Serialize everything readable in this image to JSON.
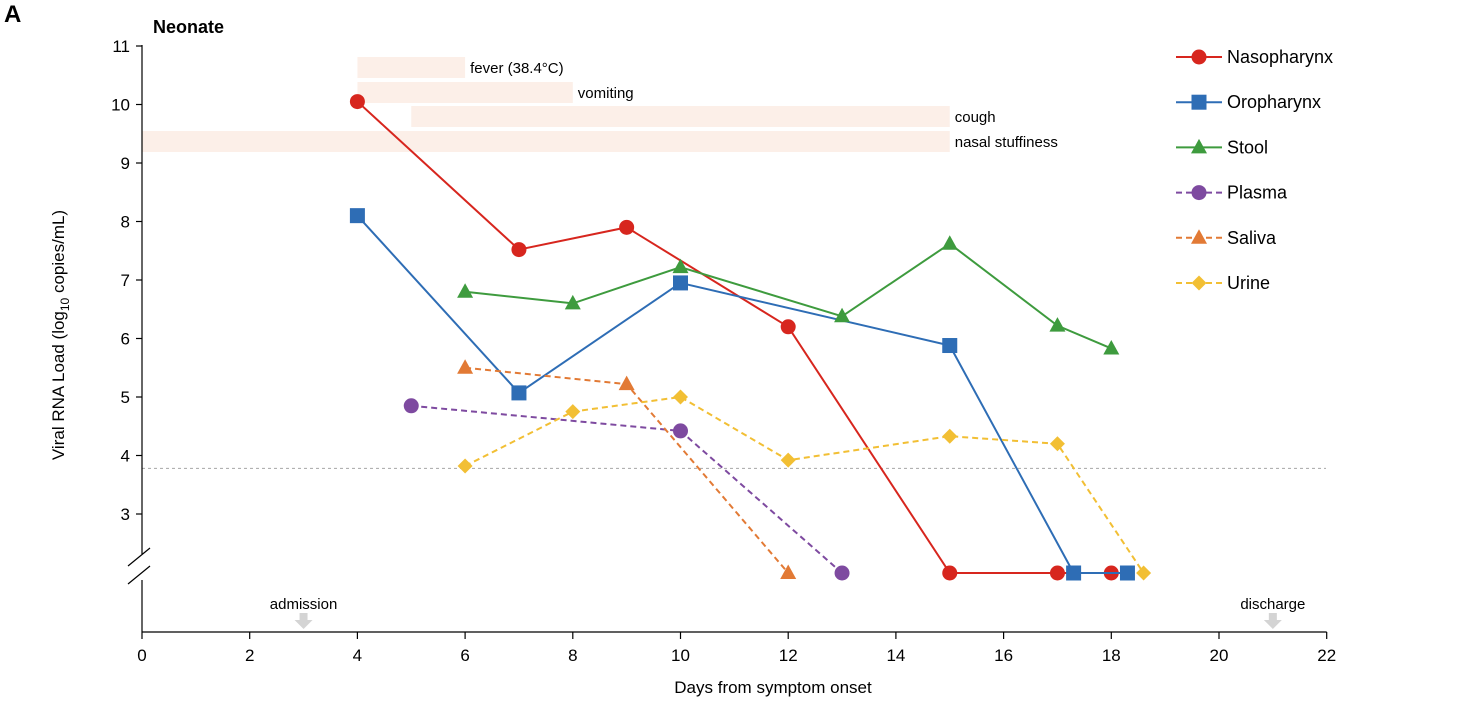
{
  "chart_data": {
    "type": "line",
    "panel_label": "A",
    "title": "Neonate",
    "xlabel": "Days from symptom onset",
    "ylabel": "Viral RNA Load (log10 copies/mL)",
    "ylabel_parts": {
      "pre": "Viral RNA Load (log",
      "sub": "10",
      "post": " copies/mL)"
    },
    "xlim": [
      0,
      22
    ],
    "ylim": [
      3,
      11
    ],
    "x_ticks": [
      "0",
      "2",
      "4",
      "6",
      "8",
      "10",
      "12",
      "14",
      "16",
      "18",
      "20",
      "22"
    ],
    "y_ticks": [
      "3",
      "4",
      "5",
      "6",
      "7",
      "8",
      "9",
      "10",
      "11"
    ],
    "axis_break": true,
    "detection_limit": 3.78,
    "undetectable_level": "below axis break",
    "legend_position": "top-right",
    "series": [
      {
        "name": "Nasopharynx",
        "color": "#d7261e",
        "marker": "circle",
        "dashed": false,
        "points": [
          [
            4,
            10.05
          ],
          [
            7,
            7.52
          ],
          [
            9,
            7.9
          ],
          [
            12,
            6.2
          ],
          [
            15,
            "ND"
          ],
          [
            17,
            "ND"
          ],
          [
            18,
            "ND"
          ]
        ]
      },
      {
        "name": "Oropharynx",
        "color": "#2e6db5",
        "marker": "square",
        "dashed": false,
        "points": [
          [
            4,
            8.1
          ],
          [
            7,
            5.07
          ],
          [
            10,
            6.95
          ],
          [
            15,
            5.88
          ],
          [
            17.3,
            "ND"
          ],
          [
            18.3,
            "ND"
          ]
        ]
      },
      {
        "name": "Stool",
        "color": "#3e9b3e",
        "marker": "triangle",
        "dashed": false,
        "points": [
          [
            6,
            6.8
          ],
          [
            8,
            6.6
          ],
          [
            10,
            7.22
          ],
          [
            13,
            6.38
          ],
          [
            15,
            7.62
          ],
          [
            17,
            6.22
          ],
          [
            18,
            5.83
          ]
        ]
      },
      {
        "name": "Plasma",
        "color": "#7e4aa0",
        "marker": "circle",
        "dashed": true,
        "points": [
          [
            5,
            4.85
          ],
          [
            10,
            4.42
          ],
          [
            13,
            "ND"
          ]
        ]
      },
      {
        "name": "Saliva",
        "color": "#e27a35",
        "marker": "triangle",
        "dashed": true,
        "points": [
          [
            6,
            5.5
          ],
          [
            9,
            5.22
          ],
          [
            12,
            "ND"
          ]
        ]
      },
      {
        "name": "Urine",
        "color": "#f2bf34",
        "marker": "diamond",
        "dashed": true,
        "points": [
          [
            6,
            3.82
          ],
          [
            8,
            4.75
          ],
          [
            10,
            5.0
          ],
          [
            12,
            3.92
          ],
          [
            15,
            4.33
          ],
          [
            17,
            4.2
          ],
          [
            18.6,
            "ND"
          ]
        ]
      }
    ],
    "symptoms": [
      {
        "label": "fever (38.4°C)",
        "start": 4,
        "end": 6
      },
      {
        "label": "vomiting",
        "start": 4,
        "end": 8
      },
      {
        "label": "cough",
        "start": 5,
        "end": 15
      },
      {
        "label": "nasal stuffiness",
        "start": 0,
        "end": 15
      }
    ],
    "events": [
      {
        "label": "admission",
        "day": 3
      },
      {
        "label": "discharge",
        "day": 21
      }
    ]
  }
}
